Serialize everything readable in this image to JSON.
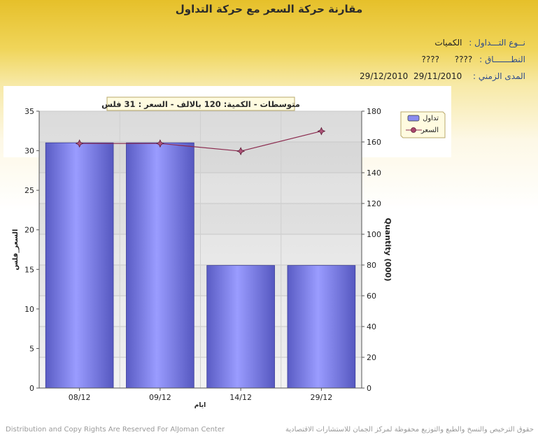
{
  "page": {
    "title": "مقارنة حركة السعر مع حركة التداول",
    "info": {
      "type_label": "نــوع التـــداول :",
      "type_value": "الكميات",
      "scope_label": "النطـــــــاق :",
      "scope_value1": "????",
      "scope_value2": "????",
      "period_label": "المدى الزمني :",
      "period_from": "29/11/2010",
      "period_to": "29/12/2010"
    },
    "footer_left": "Distribution and Copy Rights Are Reserved For AlJoman Center",
    "footer_right": "حقوق الترخيص والنسخ والطبع والتوزيع محفوظة لمركز الجمان للاستشارات الاقتصادية"
  },
  "chart_data": {
    "type": "bar",
    "annotation": "متوسطات - الكمية: 120 بالالف  - السعر : 31 فلس",
    "categories": [
      "08/12",
      "09/12",
      "14/12",
      "29/12"
    ],
    "series": [
      {
        "name": "تداول",
        "type": "bar",
        "axis": "left",
        "color": "#8a8cf0",
        "values": [
          31,
          31,
          15.5,
          15.5
        ]
      },
      {
        "name": "السعر",
        "type": "line",
        "axis": "right",
        "color": "#8b2a4e",
        "values": [
          159,
          159,
          154,
          167
        ]
      }
    ],
    "xlabel": "ايام",
    "ylabel_left": "السعر_فلس",
    "ylabel_right": "Quantity (000)",
    "ylim_left": [
      0,
      35
    ],
    "ylim_right": [
      0,
      180
    ],
    "yticks_left": [
      0,
      5,
      10,
      15,
      20,
      25,
      30,
      35
    ],
    "yticks_right": [
      0,
      20,
      40,
      60,
      80,
      100,
      120,
      140,
      160,
      180
    ],
    "legend_position": "top-right",
    "grid": true
  }
}
